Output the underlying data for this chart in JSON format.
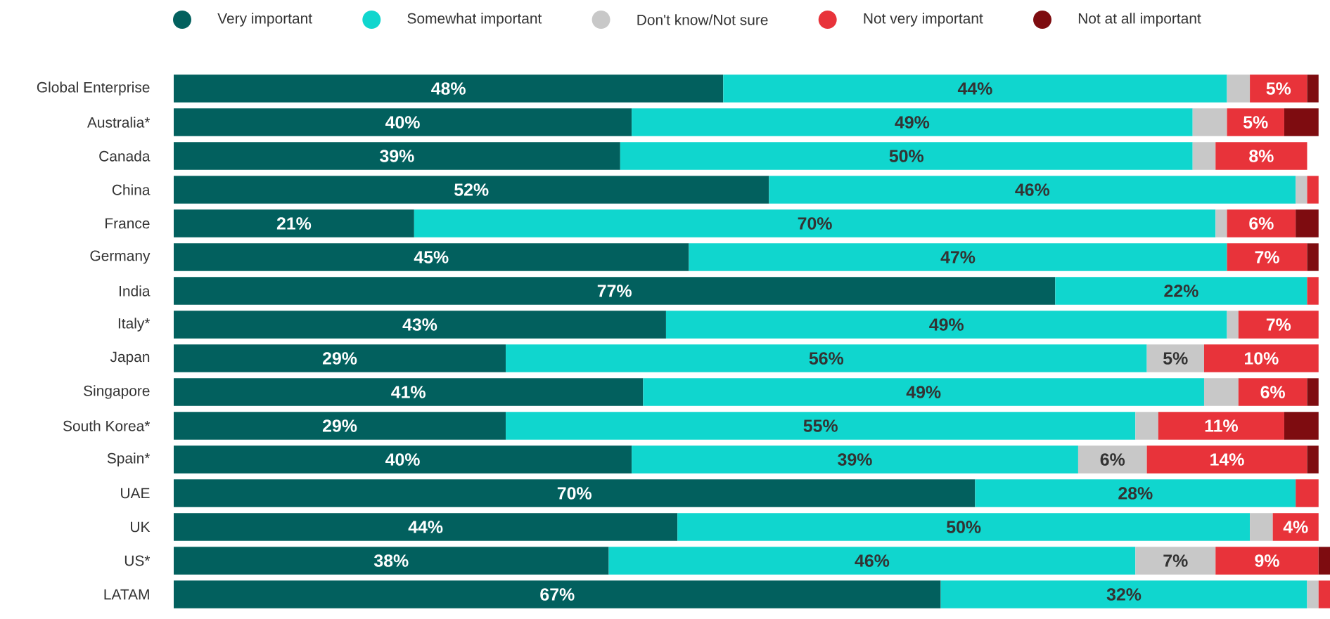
{
  "chart_data": {
    "type": "bar",
    "orientation": "horizontal",
    "stacked": true,
    "legend": "top",
    "categories": [
      "Global Enterprise",
      "Australia*",
      "Canada",
      "China",
      "France",
      "Germany",
      "India",
      "Italy*",
      "Japan",
      "Singapore",
      "South Korea*",
      "Spain*",
      "UAE",
      "UK",
      "US*",
      "LATAM"
    ],
    "series": [
      {
        "name": "Very important",
        "color": "#02605e",
        "values": [
          48,
          40,
          39,
          52,
          21,
          45,
          77,
          43,
          29,
          41,
          29,
          40,
          70,
          44,
          38,
          67
        ],
        "value_labels": [
          "48%",
          "40%",
          "39%",
          "52%",
          "21%",
          "45%",
          "77%",
          "43%",
          "29%",
          "41%",
          "29%",
          "40%",
          "70%",
          "44%",
          "38%",
          "67%"
        ]
      },
      {
        "name": "Somewhat important",
        "color": "#10d6ce",
        "values": [
          44,
          49,
          50,
          46,
          70,
          47,
          22,
          49,
          56,
          49,
          55,
          39,
          28,
          50,
          46,
          32
        ],
        "value_labels": [
          "44%",
          "49%",
          "50%",
          "46%",
          "70%",
          "47%",
          "22%",
          "49%",
          "56%",
          "49%",
          "55%",
          "39%",
          "28%",
          "50%",
          "46%",
          "32%"
        ]
      },
      {
        "name": "Don't know/Not sure",
        "color": "#c8c8c8",
        "values": [
          2,
          3,
          2,
          1,
          1,
          null,
          null,
          1,
          5,
          3,
          2,
          6,
          null,
          2,
          7,
          1
        ],
        "value_labels": [
          null,
          null,
          null,
          null,
          null,
          null,
          null,
          null,
          "5%",
          null,
          null,
          "6%",
          null,
          null,
          "7%",
          null
        ]
      },
      {
        "name": "Not very important",
        "color": "#e8333a",
        "values": [
          5,
          5,
          8,
          1,
          6,
          7,
          1,
          7,
          10,
          6,
          11,
          14,
          2,
          4,
          9,
          1
        ],
        "value_labels": [
          "5%",
          "5%",
          "8%",
          null,
          "6%",
          "7%",
          null,
          "7%",
          "10%",
          "6%",
          "11%",
          "14%",
          null,
          "4%",
          "9%",
          null
        ]
      },
      {
        "name": "Not at all important",
        "color": "#7e0c10",
        "values": [
          1,
          3,
          null,
          null,
          2,
          1,
          null,
          null,
          null,
          1,
          3,
          1,
          null,
          null,
          1,
          null
        ]
      }
    ]
  }
}
